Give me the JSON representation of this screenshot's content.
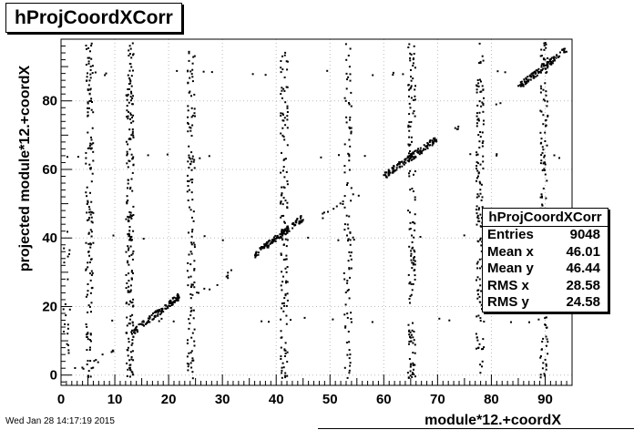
{
  "chart_data": {
    "type": "scatter",
    "title": "hProjCoordXCorr",
    "xlabel": "module*12.+coordX",
    "ylabel": "projected module*12.+coordX",
    "xlim": [
      0,
      95
    ],
    "ylim": [
      -3,
      98
    ],
    "x_ticks": [
      0,
      10,
      20,
      30,
      40,
      50,
      60,
      70,
      80,
      90
    ],
    "y_ticks": [
      0,
      20,
      40,
      60,
      80
    ],
    "grid": true,
    "stats_box": {
      "title": "hProjCoordXCorr",
      "rows": [
        {
          "label": "Entries",
          "value": "9048"
        },
        {
          "label": "Mean x",
          "value": "46.01"
        },
        {
          "label": "Mean y",
          "value": "46.44"
        },
        {
          "label": "RMS x",
          "value": "28.58"
        },
        {
          "label": "RMS y",
          "value": "24.58"
        }
      ]
    },
    "vertical_bands": [
      {
        "x": 1.0,
        "y_min": -1,
        "y_max": 42,
        "count": 20
      },
      {
        "x": 5.3,
        "y_min": -1,
        "y_max": 97,
        "count": 150
      },
      {
        "x": 12.8,
        "y_min": -1,
        "y_max": 97,
        "count": 200
      },
      {
        "x": 24.2,
        "y_min": -1,
        "y_max": 97,
        "count": 130
      },
      {
        "x": 41.5,
        "y_min": -1,
        "y_max": 97,
        "count": 140
      },
      {
        "x": 53.3,
        "y_min": -1,
        "y_max": 97,
        "count": 90
      },
      {
        "x": 65.2,
        "y_min": -1,
        "y_max": 97,
        "count": 150
      },
      {
        "x": 77.9,
        "y_min": -1,
        "y_max": 97,
        "count": 140
      },
      {
        "x": 89.8,
        "y_min": -1,
        "y_max": 97,
        "count": 130
      }
    ],
    "diagonal_segments": [
      {
        "x_start": 2,
        "x_end": 10,
        "y_start": 1,
        "y_end": 7,
        "count": 12
      },
      {
        "x_start": 13,
        "x_end": 22,
        "y_start": 12,
        "y_end": 23,
        "count": 120
      },
      {
        "x_start": 25,
        "x_end": 32,
        "y_start": 23,
        "y_end": 30,
        "count": 10
      },
      {
        "x_start": 36,
        "x_end": 45,
        "y_start": 35,
        "y_end": 46,
        "count": 130
      },
      {
        "x_start": 48,
        "x_end": 58,
        "y_start": 46,
        "y_end": 56,
        "count": 12
      },
      {
        "x_start": 60,
        "x_end": 70,
        "y_start": 58,
        "y_end": 69,
        "count": 130
      },
      {
        "x_start": 72,
        "x_end": 82,
        "y_start": 70,
        "y_end": 80,
        "count": 8
      },
      {
        "x_start": 85,
        "x_end": 94,
        "y_start": 84,
        "y_end": 95,
        "count": 110
      }
    ],
    "horizontal_streaks": [
      {
        "y": 16,
        "x_min": 1,
        "x_max": 93,
        "count": 18
      },
      {
        "y": 40,
        "x_min": 1,
        "x_max": 93,
        "count": 18
      },
      {
        "y": 64,
        "x_min": 1,
        "x_max": 93,
        "count": 18
      },
      {
        "y": 88,
        "x_min": 1,
        "x_max": 93,
        "count": 18
      }
    ]
  },
  "footer": {
    "timestamp": "Wed Jan 28 14:17:19 2015"
  }
}
